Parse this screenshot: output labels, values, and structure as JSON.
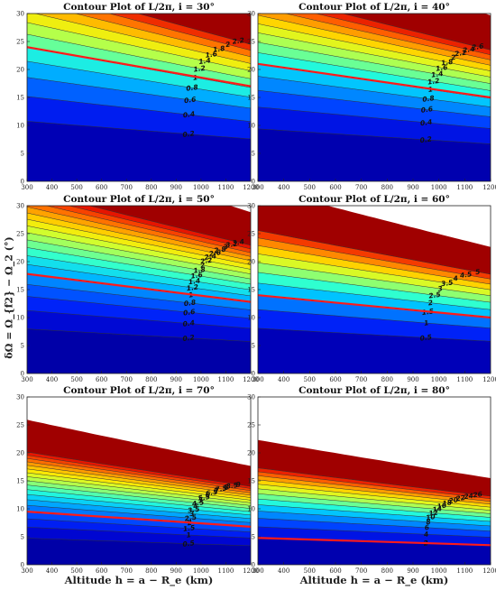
{
  "figure": {
    "ylabel": "δΩ = Ω_{f2} − Ω_2 (°)",
    "xlabel": "Altitude h = a − R_e (km)"
  },
  "chart_data": [
    {
      "type": "contour",
      "title": "Contour Plot of L/2π, i = 30°",
      "inclination_deg": 30,
      "x_range": [
        300,
        1200
      ],
      "y_range": [
        0,
        30
      ],
      "xticks": [
        300,
        400,
        500,
        600,
        700,
        800,
        900,
        1000,
        1100,
        1200
      ],
      "yticks": [
        0,
        5,
        10,
        15,
        20,
        25,
        30
      ],
      "red_line": {
        "x": [
          300,
          1200
        ],
        "y": [
          24,
          17
        ]
      },
      "contour_labels": [
        "0.2",
        "0.4",
        "0.6",
        "0.8",
        "1",
        "1.2",
        "1.4",
        "1.6",
        "1.8",
        "2",
        "2.2"
      ],
      "max_level": 2.3
    },
    {
      "type": "contour",
      "title": "Contour Plot of L/2π, i = 40°",
      "inclination_deg": 40,
      "x_range": [
        300,
        1200
      ],
      "y_range": [
        0,
        30
      ],
      "xticks": [
        300,
        400,
        500,
        600,
        700,
        800,
        900,
        1000,
        1100,
        1200
      ],
      "yticks": [
        0,
        5,
        10,
        15,
        20,
        25,
        30
      ],
      "red_line": {
        "x": [
          300,
          1200
        ],
        "y": [
          21,
          15
        ]
      },
      "contour_labels": [
        "0.2",
        "0.4",
        "0.6",
        "0.8",
        "1",
        "1.2",
        "1.4",
        "1.6",
        "1.8",
        "2",
        "2.2",
        "2.4",
        "2.6"
      ],
      "max_level": 2.7
    },
    {
      "type": "contour",
      "title": "Contour Plot of L/2π, i = 50°",
      "inclination_deg": 50,
      "x_range": [
        300,
        1200
      ],
      "y_range": [
        0,
        30
      ],
      "xticks": [
        300,
        400,
        500,
        600,
        700,
        800,
        900,
        1000,
        1100,
        1200
      ],
      "yticks": [
        0,
        5,
        10,
        15,
        20,
        25,
        30
      ],
      "red_line": {
        "x": [
          300,
          1200
        ],
        "y": [
          17.8,
          12.8
        ]
      },
      "contour_labels": [
        "0.2",
        "0.4",
        "0.6",
        "0.8",
        "1",
        "1.2",
        "1.4",
        "1.6",
        "1.8",
        "2",
        "2.2",
        "2.4",
        "2.6",
        "2.8",
        "3",
        "3.2",
        "3.4"
      ],
      "max_level": 3.5
    },
    {
      "type": "contour",
      "title": "Contour Plot of L/2π, i = 60°",
      "inclination_deg": 60,
      "x_range": [
        300,
        1200
      ],
      "y_range": [
        0,
        30
      ],
      "xticks": [
        300,
        400,
        500,
        600,
        700,
        800,
        900,
        1000,
        1100,
        1200
      ],
      "yticks": [
        0,
        5,
        10,
        15,
        20,
        25,
        30
      ],
      "red_line": {
        "x": [
          300,
          1200
        ],
        "y": [
          14,
          10
        ]
      },
      "contour_labels": [
        "0.5",
        "1",
        "1.5",
        "2",
        "2.5",
        "3",
        "3.5",
        "4",
        "4.5",
        "5"
      ],
      "max_level": 5.3
    },
    {
      "type": "contour",
      "title": "Contour Plot of L/2π, i = 70°",
      "inclination_deg": 70,
      "x_range": [
        300,
        1200
      ],
      "y_range": [
        0,
        30
      ],
      "xticks": [
        300,
        400,
        500,
        600,
        700,
        800,
        900,
        1000,
        1100,
        1200
      ],
      "yticks": [
        0,
        5,
        10,
        15,
        20,
        25,
        30
      ],
      "red_line": {
        "x": [
          300,
          1200
        ],
        "y": [
          9.5,
          6.8
        ]
      },
      "contour_labels": [
        "0.5",
        "1",
        "1.5",
        "2",
        "2.5",
        "3",
        "3.5",
        "4",
        "4.5",
        "5",
        "5.5",
        "6",
        "6.5",
        "7",
        "7.5",
        "8",
        "8.5",
        "9"
      ],
      "max_level": 9.3
    },
    {
      "type": "contour",
      "title": "Contour Plot of L/2π, i = 80°",
      "inclination_deg": 80,
      "x_range": [
        300,
        1200
      ],
      "y_range": [
        0,
        30
      ],
      "xticks": [
        300,
        400,
        500,
        600,
        700,
        800,
        900,
        1000,
        1100,
        1200
      ],
      "yticks": [
        0,
        5,
        10,
        15,
        20,
        25,
        30
      ],
      "red_line": {
        "x": [
          300,
          1200
        ],
        "y": [
          4.8,
          3.5
        ]
      },
      "contour_labels": [
        "2",
        "4",
        "6",
        "8",
        "10",
        "12",
        "14",
        "16",
        "18",
        "20",
        "22",
        "24",
        "26"
      ],
      "max_level": 27
    }
  ]
}
